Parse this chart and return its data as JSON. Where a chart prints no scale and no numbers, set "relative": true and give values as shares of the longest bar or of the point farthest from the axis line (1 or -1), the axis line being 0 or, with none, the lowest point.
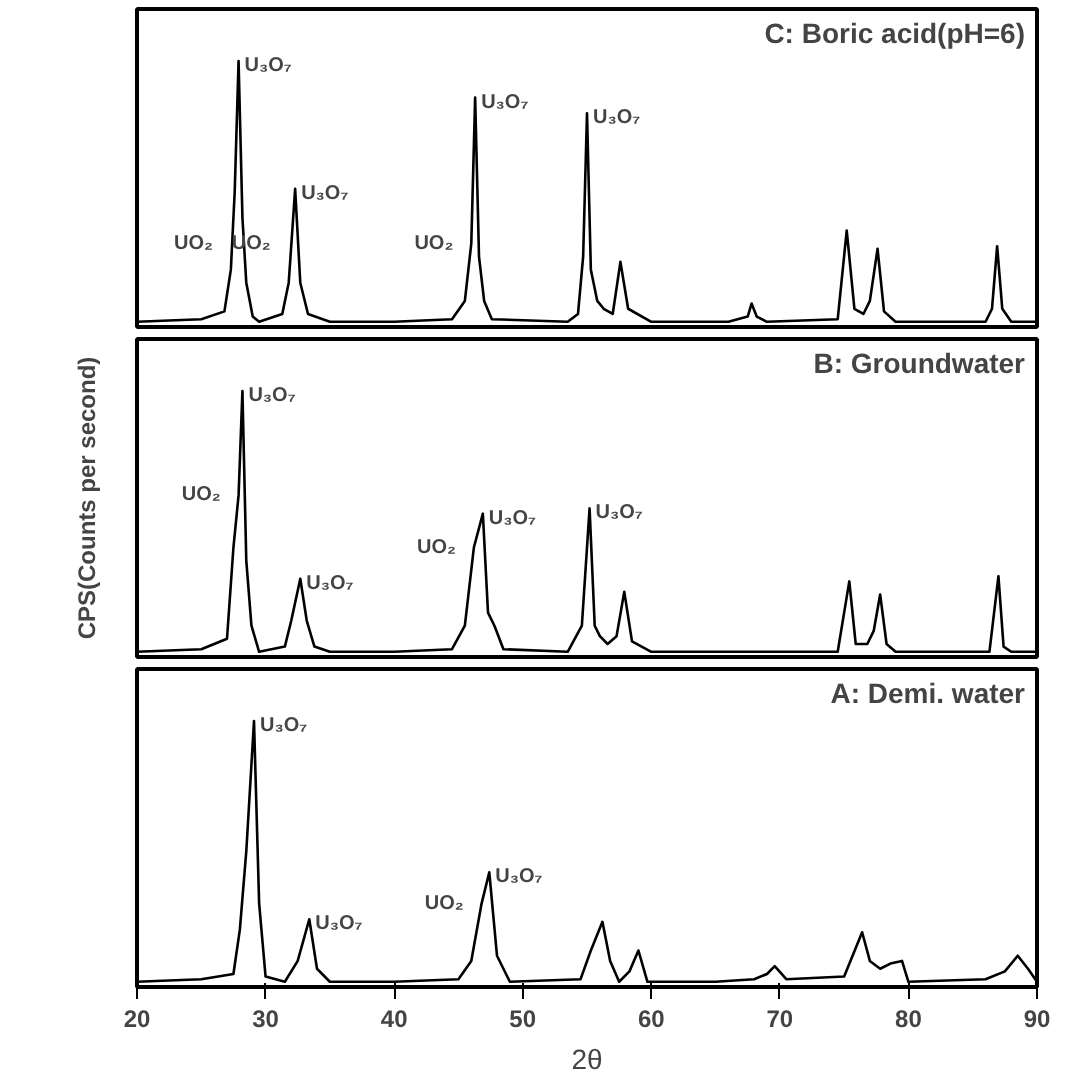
{
  "chart_data": [
    {
      "type": "line",
      "title": "C: Boric acid(pH=6)",
      "relative": true,
      "tick_labels": false,
      "xlim": [
        20,
        90
      ],
      "grid": false,
      "x": [
        20,
        25,
        26.8,
        27.3,
        27.6,
        27.9,
        28.2,
        28.5,
        29,
        29.5,
        31.3,
        31.8,
        32.3,
        32.7,
        33.3,
        35,
        40,
        44.5,
        45.5,
        46,
        46.3,
        46.6,
        47,
        47.6,
        53.5,
        54.3,
        54.7,
        55,
        55.3,
        55.8,
        56.3,
        57,
        57.6,
        58.2,
        60,
        66,
        67.5,
        67.8,
        68.2,
        69,
        74.5,
        75.2,
        75.8,
        76.5,
        77,
        77.6,
        78.1,
        79,
        86,
        86.5,
        86.9,
        87.3,
        88,
        90
      ],
      "series": [
        {
          "color": "#000000",
          "values": [
            0,
            0.01,
            0.04,
            0.2,
            0.5,
            1,
            0.4,
            0.15,
            0.02,
            0,
            0.03,
            0.15,
            0.51,
            0.15,
            0.03,
            0,
            0,
            0.01,
            0.08,
            0.3,
            0.86,
            0.25,
            0.08,
            0.01,
            0,
            0.03,
            0.25,
            0.8,
            0.2,
            0.08,
            0.05,
            0.03,
            0.23,
            0.05,
            0,
            0,
            0.02,
            0.07,
            0.02,
            0,
            0.01,
            0.35,
            0.05,
            0.03,
            0.08,
            0.28,
            0.04,
            0,
            0,
            0.05,
            0.29,
            0.05,
            0,
            0
          ]
        }
      ],
      "annotations": [
        {
          "text": "U₃O₇",
          "x": 27.9,
          "y": 1
        },
        {
          "text": "UO₂",
          "x": 27.3,
          "y": 0.3
        },
        {
          "text": "U₃O₇",
          "x": 32.3,
          "y": 0.51
        },
        {
          "text": "UO₂",
          "x": 31.8,
          "y": 0.3
        },
        {
          "text": "U₃O₇",
          "x": 46.3,
          "y": 0.86
        },
        {
          "text": "UO₂",
          "x": 46,
          "y": 0.3
        },
        {
          "text": "U₃O₇",
          "x": 55,
          "y": 0.8
        }
      ]
    },
    {
      "type": "line",
      "title": "B: Groundwater",
      "ylabel": "CPS(Counts per second)",
      "relative": true,
      "tick_labels": false,
      "xlim": [
        20,
        90
      ],
      "grid": false,
      "x": [
        20,
        25,
        27,
        27.5,
        27.9,
        28.2,
        28.5,
        28.9,
        29.5,
        31.5,
        32,
        32.7,
        33.2,
        33.8,
        35,
        40,
        44.5,
        45.5,
        46.2,
        46.9,
        47.3,
        47.8,
        48.5,
        53.5,
        54.6,
        55.2,
        55.6,
        56,
        56.6,
        57.3,
        57.9,
        58.5,
        60,
        74.5,
        75.4,
        75.9,
        76.8,
        77.3,
        77.8,
        78.3,
        79,
        86.3,
        87,
        87.4,
        88,
        90
      ],
      "series": [
        {
          "color": "#000000",
          "values": [
            0,
            0.01,
            0.05,
            0.4,
            0.6,
            1,
            0.35,
            0.1,
            0,
            0.02,
            0.12,
            0.28,
            0.12,
            0.02,
            0,
            0,
            0.01,
            0.1,
            0.4,
            0.53,
            0.15,
            0.1,
            0.01,
            0,
            0.1,
            0.55,
            0.1,
            0.06,
            0.03,
            0.06,
            0.23,
            0.04,
            0,
            0,
            0.27,
            0.03,
            0.03,
            0.08,
            0.22,
            0.03,
            0,
            0,
            0.29,
            0.02,
            0,
            0
          ]
        }
      ],
      "annotations": [
        {
          "text": "U₃O₇",
          "x": 28.2,
          "y": 1
        },
        {
          "text": "UO₂",
          "x": 27.9,
          "y": 0.6
        },
        {
          "text": "U₃O₇",
          "x": 32.7,
          "y": 0.28
        },
        {
          "text": "U₃O₇",
          "x": 46.9,
          "y": 0.53
        },
        {
          "text": "UO₂",
          "x": 46.2,
          "y": 0.4
        },
        {
          "text": "U₃O₇",
          "x": 55.2,
          "y": 0.55
        }
      ]
    },
    {
      "type": "line",
      "title": "A: Demi. water",
      "xlabel": "2θ",
      "relative": true,
      "tick_labels": "x",
      "xlim": [
        20,
        90
      ],
      "xticks": [
        20,
        30,
        40,
        50,
        60,
        70,
        80,
        90
      ],
      "grid": false,
      "x": [
        20,
        25,
        27.5,
        28,
        28.5,
        29.1,
        29.5,
        30,
        31.5,
        32.5,
        33.4,
        34,
        35,
        40,
        45,
        46,
        46.8,
        47.4,
        48,
        49,
        54.5,
        55.3,
        56.2,
        56.8,
        57.5,
        58.3,
        59,
        59.7,
        65,
        68,
        69,
        69.6,
        70.5,
        75,
        76.4,
        77,
        77.8,
        78.6,
        79.5,
        80,
        86,
        87.5,
        88.5,
        89.3,
        90
      ],
      "series": [
        {
          "color": "#000000",
          "values": [
            0,
            0.01,
            0.03,
            0.2,
            0.5,
            1,
            0.3,
            0.02,
            0,
            0.08,
            0.24,
            0.05,
            0,
            0,
            0.01,
            0.08,
            0.3,
            0.42,
            0.1,
            0,
            0.01,
            0.12,
            0.23,
            0.08,
            0,
            0.04,
            0.12,
            0,
            0,
            0.01,
            0.03,
            0.06,
            0.01,
            0.02,
            0.19,
            0.08,
            0.05,
            0.07,
            0.08,
            0,
            0.01,
            0.04,
            0.1,
            0.05,
            0
          ]
        }
      ],
      "annotations": [
        {
          "text": "U₃O₇",
          "x": 29.1,
          "y": 1
        },
        {
          "text": "U₃O₇",
          "x": 33.4,
          "y": 0.24
        },
        {
          "text": "U₃O₇",
          "x": 47.4,
          "y": 0.42
        },
        {
          "text": "UO₂",
          "x": 46.8,
          "y": 0.3
        }
      ]
    }
  ]
}
